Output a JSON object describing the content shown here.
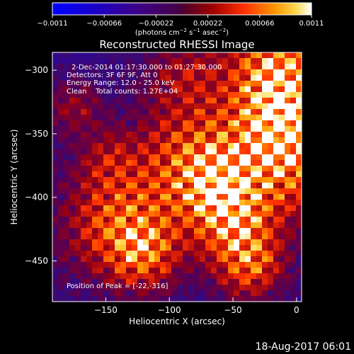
{
  "chart_data": {
    "type": "heatmap",
    "title": "Reconstructed RHESSI Image",
    "xlabel": "Heliocentric X (arcsec)",
    "ylabel": "Heliocentric Y (arcsec)",
    "xlim": [
      -192,
      4
    ],
    "ylim": [
      -482,
      -286
    ],
    "x_ticks": [
      -150,
      -100,
      -50,
      0
    ],
    "y_ticks": [
      -300,
      -350,
      -400,
      -450
    ],
    "x_tick_labels": [
      "−150",
      "−100",
      "−50",
      "0"
    ],
    "y_tick_labels": [
      "−300",
      "−350",
      "−400",
      "−450"
    ],
    "colorbar": {
      "min": -0.0011,
      "max": 0.0011,
      "ticks": [
        -0.0011,
        -0.00066,
        -0.00022,
        0.00022,
        0.00066,
        0.0011
      ],
      "tick_labels": [
        "−0.0011",
        "−0.00066",
        "−0.00022",
        "0.00022",
        "0.00066",
        "0.0011"
      ],
      "units_html": "(photons cm<tspan dy='-4' font-size='7'>−2</tspan><tspan dy='4'> s</tspan><tspan dy='-4' font-size='7'>−1</tspan><tspan dy='4'> asec</tspan><tspan dy='-4' font-size='7'>−2</tspan><tspan dy='4'>)</tspan>"
    },
    "annotations": {
      "time": "2-Dec-2014 01:17:30.000 to 01:27:30.000",
      "detectors": "Detectors: 3F 6F 9F, Att 0",
      "energy": "Energy Range: 12.0 - 25.0 keV",
      "method": "Clean    Total counts: 1.27E+04",
      "peak": "Position of Peak = [-22,-316]"
    },
    "peak": [
      -22,
      -316
    ],
    "grid": false
  },
  "footer": {
    "timestamp": "18-Aug-2017 06:01"
  }
}
